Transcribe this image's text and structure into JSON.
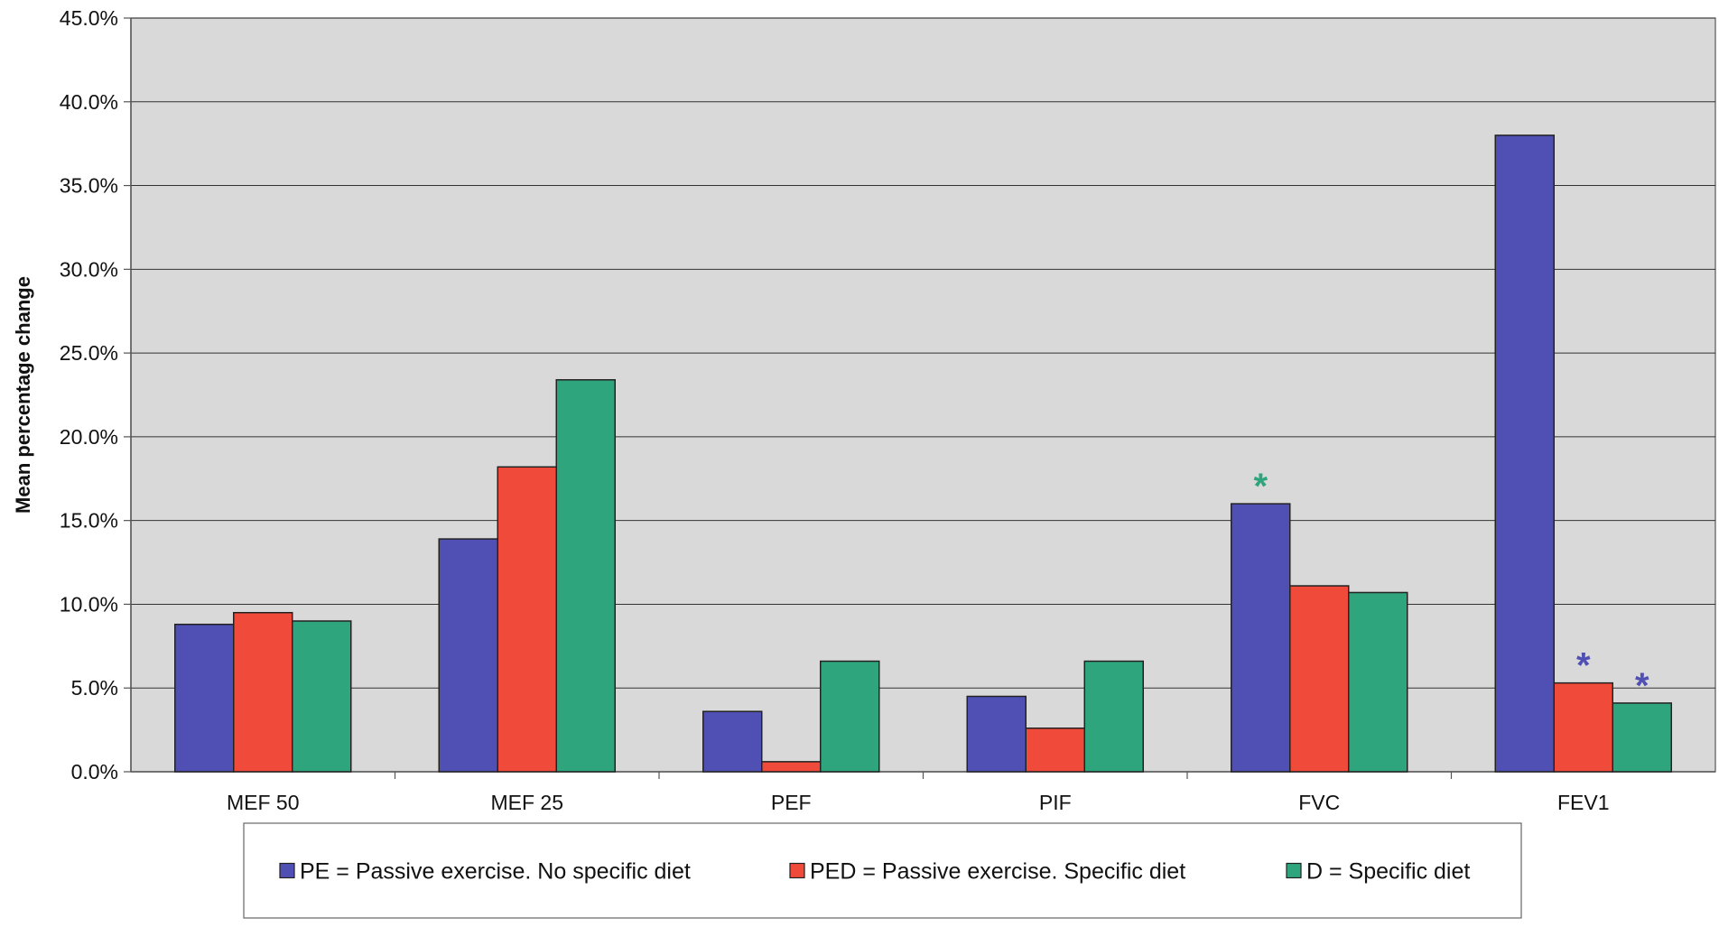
{
  "chart_data": {
    "type": "bar",
    "title": "",
    "ylabel": "Mean percentage change",
    "xlabel": "",
    "ylim": [
      0,
      45
    ],
    "ytick_step": 5,
    "ytick_labels": [
      "0.0%",
      "5.0%",
      "10.0%",
      "15.0%",
      "20.0%",
      "25.0%",
      "30.0%",
      "35.0%",
      "40.0%",
      "45.0%"
    ],
    "categories": [
      "MEF 50",
      "MEF 25",
      "PEF",
      "PIF",
      "FVC",
      "FEV1"
    ],
    "series": [
      {
        "name": "PE = Passive exercise. No specific diet",
        "color": "#5050b4",
        "values": [
          8.8,
          13.9,
          3.6,
          4.5,
          16.0,
          38.0
        ]
      },
      {
        "name": "PED = Passive exercise. Specific diet",
        "color": "#f04a3a",
        "values": [
          9.5,
          18.2,
          0.6,
          2.6,
          11.1,
          5.3
        ]
      },
      {
        "name": "D = Specific diet",
        "color": "#2ea57c",
        "values": [
          9.0,
          23.4,
          6.6,
          6.6,
          10.7,
          4.1
        ]
      }
    ],
    "grid": true,
    "legend_position": "bottom",
    "annotations": [
      {
        "text": "*",
        "category": "FVC",
        "series": 0,
        "color": "#2ea57c"
      },
      {
        "text": "*",
        "category": "FEV1",
        "series": 1,
        "color": "#5050b4"
      },
      {
        "text": "*",
        "category": "FEV1",
        "series": 2,
        "color": "#5050b4"
      }
    ],
    "colors": {
      "plot_background": "#d9d9d9",
      "grid": "#333333",
      "axis": "#555555",
      "bar_outline": "#222222"
    }
  }
}
